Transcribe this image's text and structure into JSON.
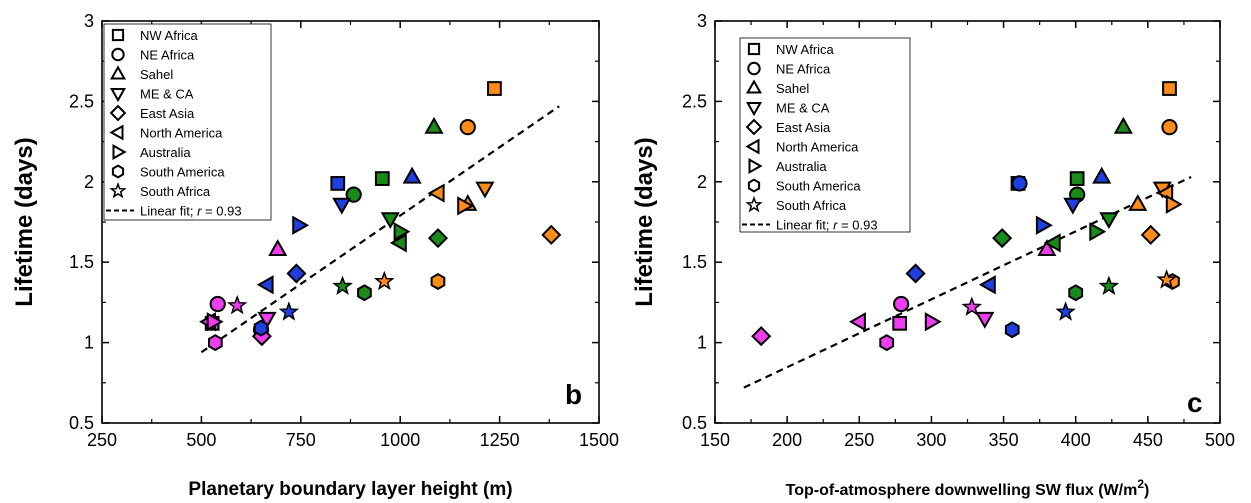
{
  "colors": {
    "NW Africa": "#ff8c1a",
    "NE Africa": "#ff8c1a",
    "Sahel": "#1a9f1a",
    "ME & CA": "#ff8c1a",
    "East Asia": "#ff8c1a",
    "North America": "#ff8c1a",
    "Australia": "#ff8c1a",
    "South America": "#ff8c1a",
    "South Africa": "#ff8c1a",
    "orange": "#ff8c1a",
    "green": "#1a8a1a",
    "blue": "#1f3fe0",
    "magenta": "#f03cf0",
    "fit": "#000000"
  },
  "legend_entries": [
    {
      "label": "NW Africa",
      "marker": "square"
    },
    {
      "label": "NE Africa",
      "marker": "circle"
    },
    {
      "label": "Sahel",
      "marker": "triangle-up"
    },
    {
      "label": "ME & CA",
      "marker": "triangle-down"
    },
    {
      "label": "East Asia",
      "marker": "diamond"
    },
    {
      "label": "North America",
      "marker": "triangle-left"
    },
    {
      "label": "Australia",
      "marker": "triangle-right"
    },
    {
      "label": "South America",
      "marker": "hexagon"
    },
    {
      "label": "South Africa",
      "marker": "star"
    }
  ],
  "fit_label_prefix": "Linear fit; ",
  "fit_label_r": "r",
  "fit_label_suffix": " = 0.93",
  "chart_data": [
    {
      "type": "scatter",
      "panel_letter": "b",
      "xlabel": "Planetary boundary layer height (m)",
      "ylabel": "Lifetime (days)",
      "xlim": [
        250,
        1500
      ],
      "ylim": [
        0.5,
        3
      ],
      "xticks": [
        250,
        500,
        750,
        1000,
        1250,
        1500
      ],
      "yticks": [
        0.5,
        1,
        1.5,
        2,
        2.5,
        3
      ],
      "legend_position": "top-left",
      "fit": {
        "x": [
          500,
          1400
        ],
        "y": [
          0.94,
          2.47
        ],
        "r": 0.93
      },
      "points": [
        {
          "marker": "square",
          "color": "orange",
          "x": 1237,
          "y": 2.58
        },
        {
          "marker": "square",
          "color": "green",
          "x": 955,
          "y": 2.02
        },
        {
          "marker": "square",
          "color": "blue",
          "x": 843,
          "y": 1.99
        },
        {
          "marker": "square",
          "color": "magenta",
          "x": 527,
          "y": 1.12
        },
        {
          "marker": "circle",
          "color": "orange",
          "x": 1170,
          "y": 2.34
        },
        {
          "marker": "circle",
          "color": "green",
          "x": 883,
          "y": 1.92
        },
        {
          "marker": "circle",
          "color": "blue",
          "x": 650,
          "y": 1.08
        },
        {
          "marker": "circle",
          "color": "magenta",
          "x": 541,
          "y": 1.24
        },
        {
          "marker": "triangle-up",
          "color": "green",
          "x": 1085,
          "y": 2.34
        },
        {
          "marker": "triangle-up",
          "color": "blue",
          "x": 1030,
          "y": 2.03
        },
        {
          "marker": "triangle-up",
          "color": "orange",
          "x": 1170,
          "y": 1.86
        },
        {
          "marker": "triangle-up",
          "color": "magenta",
          "x": 692,
          "y": 1.58
        },
        {
          "marker": "triangle-down",
          "color": "orange",
          "x": 1213,
          "y": 1.96
        },
        {
          "marker": "triangle-down",
          "color": "blue",
          "x": 853,
          "y": 1.86
        },
        {
          "marker": "triangle-down",
          "color": "green",
          "x": 975,
          "y": 1.77
        },
        {
          "marker": "triangle-down",
          "color": "magenta",
          "x": 665,
          "y": 1.15
        },
        {
          "marker": "diamond",
          "color": "orange",
          "x": 1380,
          "y": 1.67
        },
        {
          "marker": "diamond",
          "color": "green",
          "x": 1095,
          "y": 1.65
        },
        {
          "marker": "diamond",
          "color": "blue",
          "x": 739,
          "y": 1.43
        },
        {
          "marker": "diamond",
          "color": "magenta",
          "x": 652,
          "y": 1.04
        },
        {
          "marker": "triangle-left",
          "color": "orange",
          "x": 1095,
          "y": 1.93
        },
        {
          "marker": "triangle-left",
          "color": "green",
          "x": 1000,
          "y": 1.62
        },
        {
          "marker": "triangle-left",
          "color": "blue",
          "x": 665,
          "y": 1.36
        },
        {
          "marker": "triangle-left",
          "color": "magenta",
          "x": 520,
          "y": 1.13
        },
        {
          "marker": "triangle-right",
          "color": "orange",
          "x": 1160,
          "y": 1.85
        },
        {
          "marker": "triangle-right",
          "color": "green",
          "x": 1000,
          "y": 1.69
        },
        {
          "marker": "triangle-right",
          "color": "blue",
          "x": 745,
          "y": 1.73
        },
        {
          "marker": "triangle-right",
          "color": "magenta",
          "x": 530,
          "y": 1.13
        },
        {
          "marker": "hexagon",
          "color": "orange",
          "x": 1095,
          "y": 1.38
        },
        {
          "marker": "hexagon",
          "color": "green",
          "x": 910,
          "y": 1.31
        },
        {
          "marker": "hexagon",
          "color": "blue",
          "x": 650,
          "y": 1.09
        },
        {
          "marker": "hexagon",
          "color": "magenta",
          "x": 535,
          "y": 1.0
        },
        {
          "marker": "star",
          "color": "orange",
          "x": 960,
          "y": 1.38
        },
        {
          "marker": "star",
          "color": "green",
          "x": 855,
          "y": 1.35
        },
        {
          "marker": "star",
          "color": "blue",
          "x": 720,
          "y": 1.19
        },
        {
          "marker": "star",
          "color": "magenta",
          "x": 590,
          "y": 1.23
        }
      ]
    },
    {
      "type": "scatter",
      "panel_letter": "c",
      "xlabel": "Top-of-atmosphere downwelling SW flux (W/m",
      "xlabel_sup": "2",
      "xlabel_end": ")",
      "ylabel": "Lifetime (days)",
      "xlim": [
        150,
        500
      ],
      "ylim": [
        0.5,
        3
      ],
      "xticks": [
        150,
        200,
        250,
        300,
        350,
        400,
        450,
        500
      ],
      "yticks": [
        0.5,
        1,
        1.5,
        2,
        2.5,
        3
      ],
      "legend_position": "top-left",
      "fit": {
        "x": [
          170,
          480
        ],
        "y": [
          0.72,
          2.03
        ],
        "r": 0.93
      },
      "points": [
        {
          "marker": "square",
          "color": "orange",
          "x": 465,
          "y": 2.58
        },
        {
          "marker": "square",
          "color": "green",
          "x": 401,
          "y": 2.02
        },
        {
          "marker": "square",
          "color": "blue",
          "x": 360,
          "y": 1.99
        },
        {
          "marker": "square",
          "color": "magenta",
          "x": 278,
          "y": 1.12
        },
        {
          "marker": "circle",
          "color": "orange",
          "x": 465,
          "y": 2.34
        },
        {
          "marker": "circle",
          "color": "green",
          "x": 401,
          "y": 1.92
        },
        {
          "marker": "circle",
          "color": "blue",
          "x": 361,
          "y": 1.99
        },
        {
          "marker": "circle",
          "color": "magenta",
          "x": 279,
          "y": 1.24
        },
        {
          "marker": "triangle-up",
          "color": "green",
          "x": 433,
          "y": 2.34
        },
        {
          "marker": "triangle-up",
          "color": "blue",
          "x": 418,
          "y": 2.03
        },
        {
          "marker": "triangle-up",
          "color": "orange",
          "x": 443,
          "y": 1.86
        },
        {
          "marker": "triangle-up",
          "color": "magenta",
          "x": 380,
          "y": 1.58
        },
        {
          "marker": "triangle-down",
          "color": "orange",
          "x": 460,
          "y": 1.96
        },
        {
          "marker": "triangle-down",
          "color": "blue",
          "x": 398,
          "y": 1.86
        },
        {
          "marker": "triangle-down",
          "color": "green",
          "x": 423,
          "y": 1.77
        },
        {
          "marker": "triangle-down",
          "color": "magenta",
          "x": 337,
          "y": 1.15
        },
        {
          "marker": "diamond",
          "color": "orange",
          "x": 452,
          "y": 1.67
        },
        {
          "marker": "diamond",
          "color": "green",
          "x": 349,
          "y": 1.65
        },
        {
          "marker": "diamond",
          "color": "blue",
          "x": 289,
          "y": 1.43
        },
        {
          "marker": "diamond",
          "color": "magenta",
          "x": 182,
          "y": 1.04
        },
        {
          "marker": "triangle-left",
          "color": "orange",
          "x": 463,
          "y": 1.93
        },
        {
          "marker": "triangle-left",
          "color": "green",
          "x": 385,
          "y": 1.62
        },
        {
          "marker": "triangle-left",
          "color": "blue",
          "x": 340,
          "y": 1.36
        },
        {
          "marker": "triangle-left",
          "color": "magenta",
          "x": 250,
          "y": 1.13
        },
        {
          "marker": "triangle-right",
          "color": "orange",
          "x": 467,
          "y": 1.86
        },
        {
          "marker": "triangle-right",
          "color": "green",
          "x": 414,
          "y": 1.69
        },
        {
          "marker": "triangle-right",
          "color": "blue",
          "x": 377,
          "y": 1.73
        },
        {
          "marker": "triangle-right",
          "color": "magenta",
          "x": 300,
          "y": 1.13
        },
        {
          "marker": "hexagon",
          "color": "orange",
          "x": 467,
          "y": 1.38
        },
        {
          "marker": "hexagon",
          "color": "green",
          "x": 400,
          "y": 1.31
        },
        {
          "marker": "hexagon",
          "color": "blue",
          "x": 356,
          "y": 1.08
        },
        {
          "marker": "hexagon",
          "color": "magenta",
          "x": 269,
          "y": 1.0
        },
        {
          "marker": "star",
          "color": "orange",
          "x": 463,
          "y": 1.39
        },
        {
          "marker": "star",
          "color": "green",
          "x": 423,
          "y": 1.35
        },
        {
          "marker": "star",
          "color": "blue",
          "x": 393,
          "y": 1.19
        },
        {
          "marker": "star",
          "color": "magenta",
          "x": 328,
          "y": 1.22
        }
      ]
    }
  ]
}
